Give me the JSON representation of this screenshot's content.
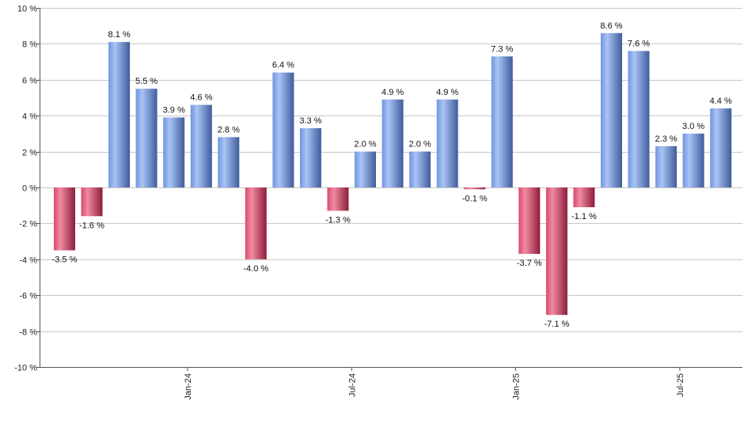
{
  "chart_data": {
    "type": "bar",
    "title": "",
    "xlabel": "",
    "ylabel": "",
    "ylim": [
      -10,
      10
    ],
    "y_ticks": [
      -10,
      -8,
      -6,
      -4,
      -2,
      0,
      2,
      4,
      6,
      8,
      10
    ],
    "y_tick_suffix": " %",
    "grid": true,
    "values": [
      -3.5,
      -1.6,
      8.1,
      5.5,
      3.9,
      4.6,
      2.8,
      -4.0,
      6.4,
      3.3,
      -1.3,
      2.0,
      4.9,
      2.0,
      4.9,
      -0.1,
      7.3,
      -3.7,
      -7.1,
      -1.1,
      8.6,
      7.6,
      2.3,
      3.0,
      4.4
    ],
    "value_labels": [
      "-3.5 %",
      "-1.6 %",
      "8.1 %",
      "5.5 %",
      "3.9 %",
      "4.6 %",
      "2.8 %",
      "-4.0 %",
      "6.4 %",
      "3.3 %",
      "-1.3 %",
      "2.0 %",
      "4.9 %",
      "2.0 %",
      "4.9 %",
      "-0.1 %",
      "7.3 %",
      "-3.7 %",
      "-7.1 %",
      "-1.1 %",
      "8.6 %",
      "7.6 %",
      "2.3 %",
      "3.0 %",
      "4.4 %"
    ],
    "x_tick_labels": [
      {
        "label": "Jan-24",
        "bar_index": 4.5
      },
      {
        "label": "Jul-24",
        "bar_index": 10.5
      },
      {
        "label": "Jan-25",
        "bar_index": 16.5
      },
      {
        "label": "Jul-25",
        "bar_index": 22.5
      }
    ],
    "colors": {
      "positive_light": "#a9c4f5",
      "positive_mid": "#6f95de",
      "positive_dark": "#3f5c9c",
      "negative_light": "#f08aa2",
      "negative_mid": "#d94a6c",
      "negative_dark": "#8e1d3a"
    }
  }
}
